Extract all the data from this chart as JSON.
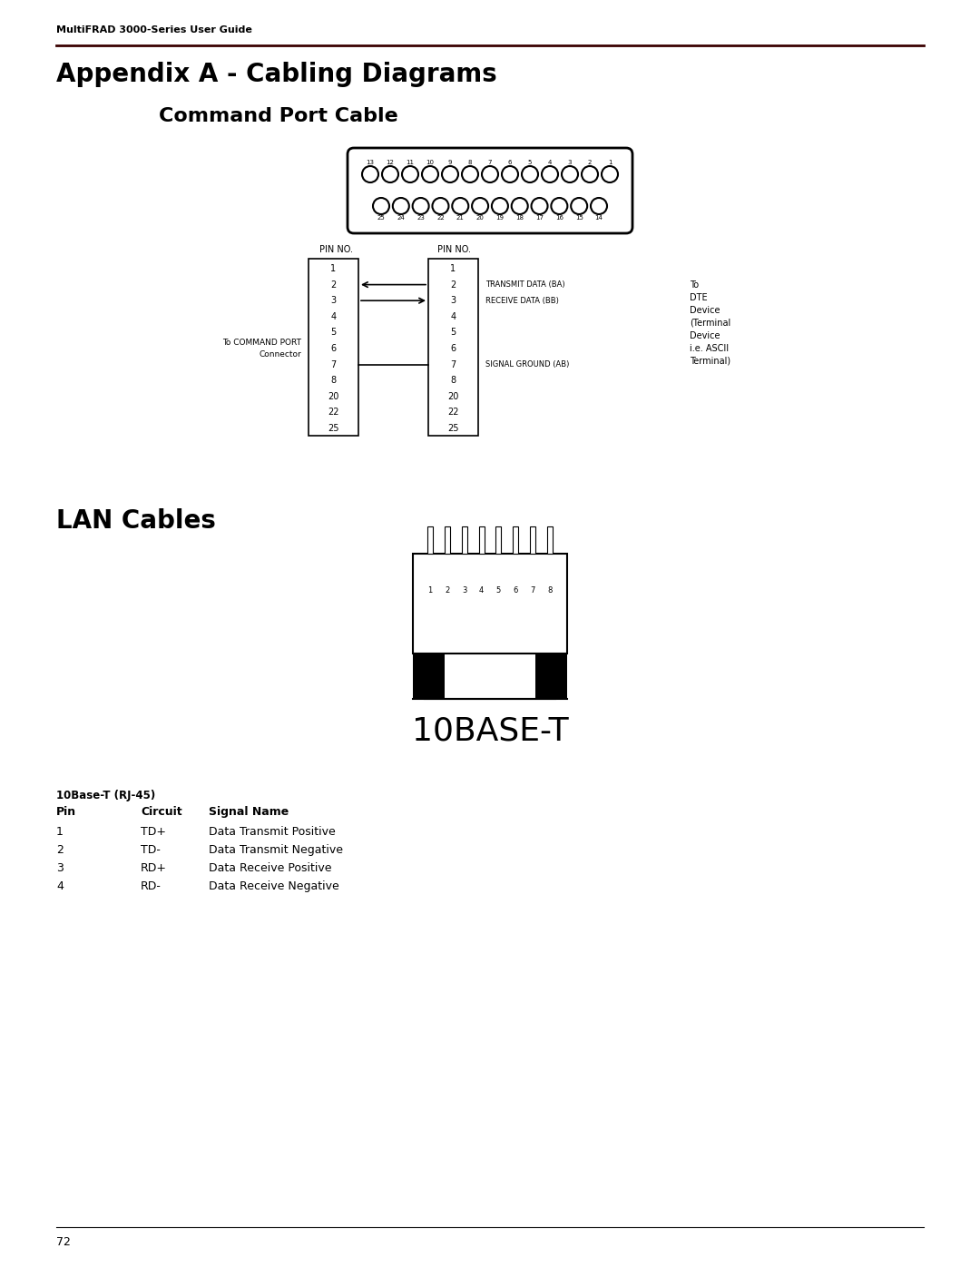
{
  "bg_color": "#ffffff",
  "header_text": "MultiFRAD 3000-Series User Guide",
  "header_fontsize": 8,
  "title1": "Appendix A - Cabling Diagrams",
  "title1_fontsize": 20,
  "title2": "Command Port Cable",
  "title2_fontsize": 16,
  "title3": "LAN Cables",
  "title3_fontsize": 20,
  "footer_text": "72",
  "footer_fontsize": 9,
  "db25_top_pins": [
    "13",
    "12",
    "11",
    "10",
    "9",
    "8",
    "7",
    "6",
    "5",
    "4",
    "3",
    "2",
    "1"
  ],
  "db25_bottom_pins": [
    "25",
    "24",
    "23",
    "22",
    "21",
    "20",
    "19",
    "18",
    "17",
    "16",
    "15",
    "14"
  ],
  "pin_no_left_label": "PIN NO.",
  "pin_no_right_label": "PIN NO.",
  "pin_rows": [
    "1",
    "2",
    "3",
    "4",
    "5",
    "6",
    "7",
    "8",
    "20",
    "22",
    "25"
  ],
  "rj45_label": "10BASE-T",
  "rj45_fontsize": 26,
  "table_header": "10Base-T (RJ-45)",
  "table_rows": [
    [
      "1",
      "TD+",
      "Data Transmit Positive"
    ],
    [
      "2",
      "TD-",
      "Data Transmit Negative"
    ],
    [
      "3",
      "RD+",
      "Data Receive Positive"
    ],
    [
      "4",
      "RD-",
      "Data Receive Negative"
    ]
  ]
}
